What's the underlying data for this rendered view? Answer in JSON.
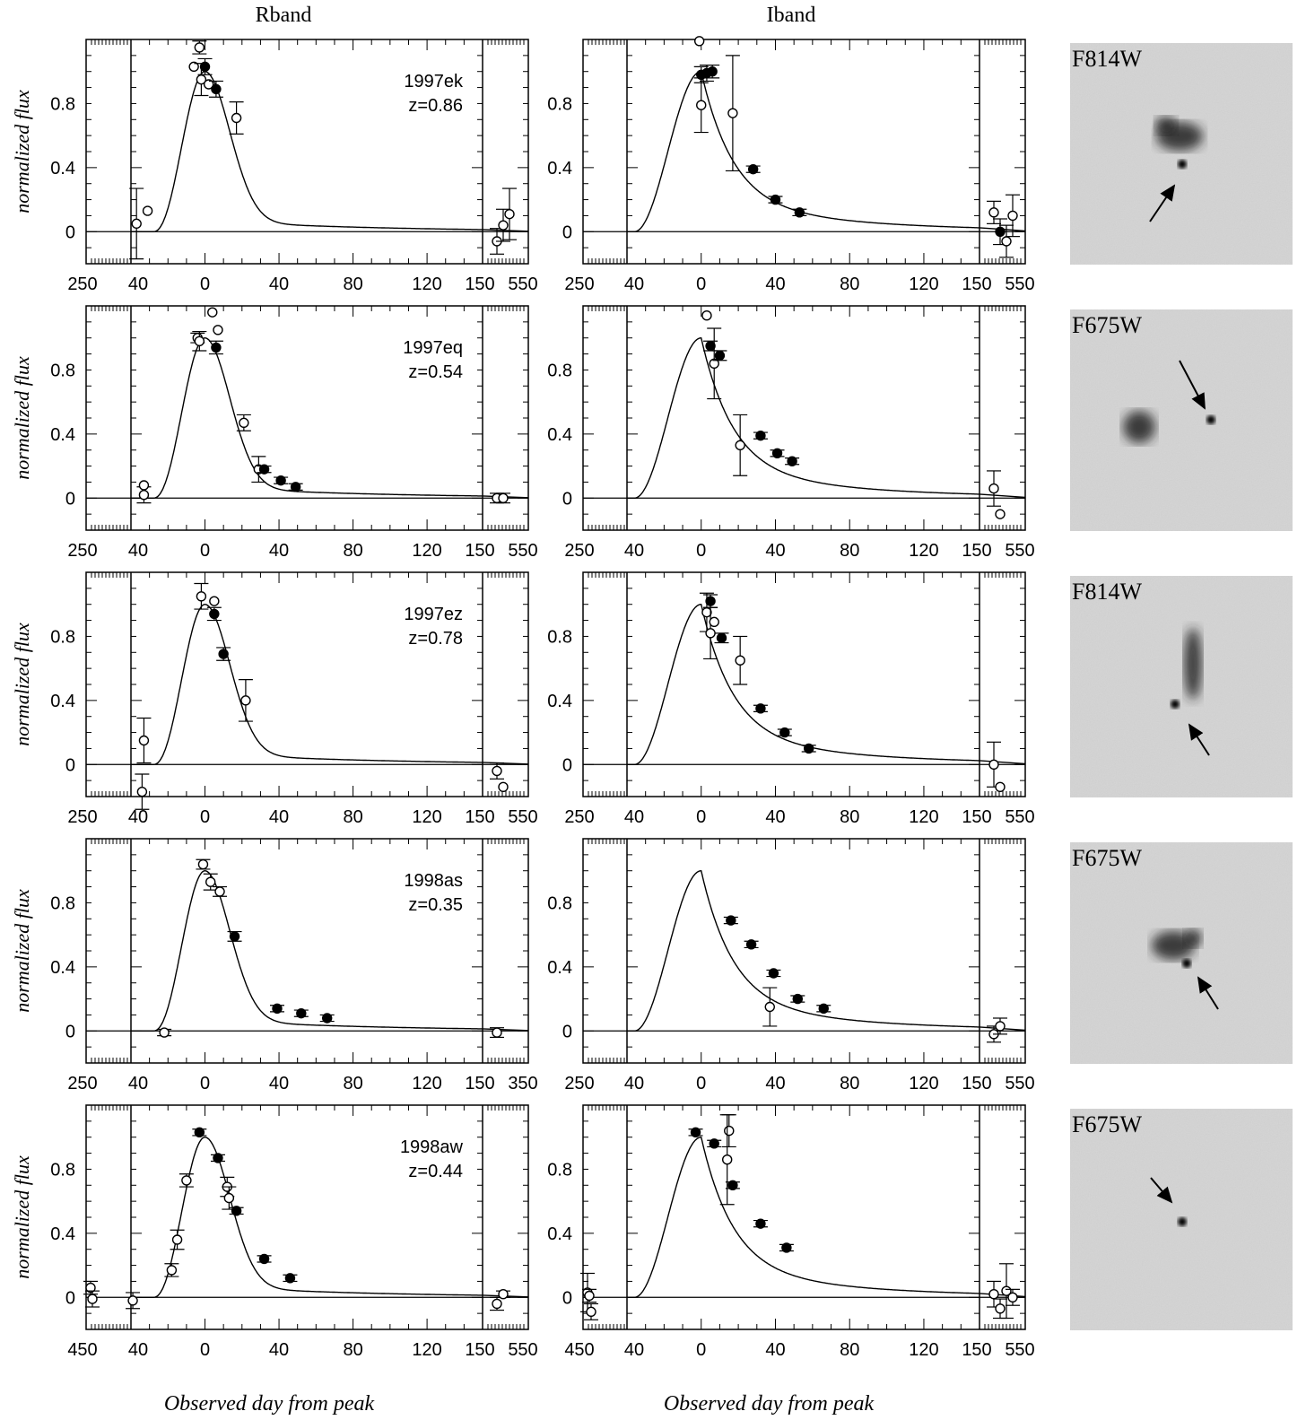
{
  "column_headers": [
    "Rband",
    "Iband"
  ],
  "x_axis_label": "Observed day from peak",
  "y_axis_label": "normalized flux",
  "colors": {
    "ink": "#000000",
    "image_bg": "#d4d4d4",
    "image_noise": "#a9a9a9"
  },
  "chart_data": [
    {
      "type": "scatter",
      "band": "R",
      "row": 1,
      "supernova": "1997ek",
      "redshift": "z=0.86",
      "xticks_left": [
        "250"
      ],
      "xticks_main": [
        "40",
        "0",
        "40",
        "80",
        "120"
      ],
      "xticks_right": [
        "150",
        "550"
      ],
      "yticks": [
        "0",
        "0.4",
        "0.8"
      ],
      "ylim": [
        -0.2,
        1.2
      ],
      "xlim": [
        -40,
        150
      ],
      "points": [
        {
          "x": -37,
          "y": 0.05,
          "err": 0.22,
          "filled": false
        },
        {
          "x": -31,
          "y": 0.13,
          "err": 0,
          "filled": false
        },
        {
          "x": -6,
          "y": 1.03,
          "err": 0,
          "filled": false
        },
        {
          "x": -3,
          "y": 1.15,
          "err": 0.04,
          "filled": false
        },
        {
          "x": -2,
          "y": 0.95,
          "err": 0.1,
          "filled": false
        },
        {
          "x": 0,
          "y": 1.03,
          "err": 0.05,
          "filled": true
        },
        {
          "x": 2,
          "y": 0.92,
          "err": 0,
          "filled": false
        },
        {
          "x": 6,
          "y": 0.89,
          "err": 0.05,
          "filled": true
        },
        {
          "x": 17,
          "y": 0.71,
          "err": 0.1,
          "filled": false
        }
      ],
      "late_points": [
        {
          "y": -0.06,
          "err": 0.08,
          "filled": false
        },
        {
          "y": 0.04,
          "err": 0.1,
          "filled": false
        },
        {
          "y": 0.11,
          "err": 0.16,
          "filled": false
        }
      ]
    },
    {
      "type": "scatter",
      "band": "I",
      "row": 1,
      "xticks_left": [
        "250"
      ],
      "xticks_main": [
        "40",
        "0",
        "40",
        "80",
        "120"
      ],
      "xticks_right": [
        "150",
        "550"
      ],
      "yticks": [
        "0",
        "0.4",
        "0.8"
      ],
      "ylim": [
        -0.2,
        1.2
      ],
      "xlim": [
        -40,
        150
      ],
      "points": [
        {
          "x": -1,
          "y": 1.19,
          "err": 0,
          "filled": false
        },
        {
          "x": 0,
          "y": 0.79,
          "err": 0.17,
          "filled": false
        },
        {
          "x": 0,
          "y": 0.98,
          "err": 0.05,
          "filled": true
        },
        {
          "x": 3,
          "y": 0.99,
          "err": 0.05,
          "filled": true
        },
        {
          "x": 6,
          "y": 1.0,
          "err": 0.04,
          "filled": true
        },
        {
          "x": 17,
          "y": 0.74,
          "err": 0.36,
          "filled": false
        },
        {
          "x": 28,
          "y": 0.39,
          "err": 0.02,
          "filled": true
        },
        {
          "x": 40,
          "y": 0.2,
          "err": 0.02,
          "filled": true
        },
        {
          "x": 53,
          "y": 0.12,
          "err": 0.02,
          "filled": true
        }
      ],
      "late_points": [
        {
          "y": 0.12,
          "err": 0.07,
          "filled": false
        },
        {
          "y": 0.0,
          "err": 0.08,
          "filled": true
        },
        {
          "y": -0.06,
          "err": 0.1,
          "filled": false
        },
        {
          "y": 0.1,
          "err": 0.13,
          "filled": false
        }
      ]
    },
    {
      "type": "scatter",
      "band": "R",
      "row": 2,
      "supernova": "1997eq",
      "redshift": "z=0.54",
      "xticks_left": [
        "250"
      ],
      "xticks_main": [
        "40",
        "0",
        "40",
        "80",
        "120"
      ],
      "xticks_right": [
        "150",
        "550"
      ],
      "yticks": [
        "0",
        "0.4",
        "0.8"
      ],
      "ylim": [
        -0.2,
        1.2
      ],
      "xlim": [
        -40,
        150
      ],
      "points": [
        {
          "x": -33,
          "y": 0.02,
          "err": 0.05,
          "filled": false
        },
        {
          "x": -33,
          "y": 0.08,
          "err": 0,
          "filled": false
        },
        {
          "x": -4,
          "y": 1.0,
          "err": 0.03,
          "filled": false
        },
        {
          "x": -3,
          "y": 0.98,
          "err": 0.06,
          "filled": false
        },
        {
          "x": 4,
          "y": 1.16,
          "err": 0,
          "filled": false
        },
        {
          "x": 6,
          "y": 0.94,
          "err": 0.04,
          "filled": true
        },
        {
          "x": 7,
          "y": 1.05,
          "err": 0,
          "filled": false
        },
        {
          "x": 21,
          "y": 0.47,
          "err": 0.05,
          "filled": false
        },
        {
          "x": 29,
          "y": 0.18,
          "err": 0.08,
          "filled": false
        },
        {
          "x": 32,
          "y": 0.18,
          "err": 0.02,
          "filled": true
        },
        {
          "x": 41,
          "y": 0.11,
          "err": 0.02,
          "filled": true
        },
        {
          "x": 49,
          "y": 0.07,
          "err": 0.02,
          "filled": true
        }
      ],
      "late_points": [
        {
          "y": 0.0,
          "err": 0.03,
          "filled": false
        },
        {
          "y": 0.0,
          "err": 0.03,
          "filled": false
        }
      ]
    },
    {
      "type": "scatter",
      "band": "I",
      "row": 2,
      "xticks_left": [
        "250"
      ],
      "xticks_main": [
        "40",
        "0",
        "40",
        "80",
        "120"
      ],
      "xticks_right": [
        "150",
        "550"
      ],
      "yticks": [
        "0",
        "0.4",
        "0.8"
      ],
      "ylim": [
        -0.2,
        1.2
      ],
      "xlim": [
        -40,
        150
      ],
      "points": [
        {
          "x": 3,
          "y": 1.14,
          "err": 0,
          "filled": false
        },
        {
          "x": 5,
          "y": 0.95,
          "err": 0.03,
          "filled": true
        },
        {
          "x": 7,
          "y": 0.84,
          "err": 0.22,
          "filled": false
        },
        {
          "x": 10,
          "y": 0.89,
          "err": 0.03,
          "filled": true
        },
        {
          "x": 21,
          "y": 0.33,
          "err": 0.19,
          "filled": false
        },
        {
          "x": 32,
          "y": 0.39,
          "err": 0.02,
          "filled": true
        },
        {
          "x": 41,
          "y": 0.28,
          "err": 0.02,
          "filled": true
        },
        {
          "x": 49,
          "y": 0.23,
          "err": 0.02,
          "filled": true
        }
      ],
      "late_points": [
        {
          "y": 0.06,
          "err": 0.11,
          "filled": false
        },
        {
          "y": -0.1,
          "err": 0,
          "filled": false
        }
      ]
    },
    {
      "type": "scatter",
      "band": "R",
      "row": 3,
      "supernova": "1997ez",
      "redshift": "z=0.78",
      "xticks_left": [
        "250"
      ],
      "xticks_main": [
        "40",
        "0",
        "40",
        "80",
        "120"
      ],
      "xticks_right": [
        "150",
        "550"
      ],
      "yticks": [
        "0",
        "0.4",
        "0.8"
      ],
      "ylim": [
        -0.2,
        1.2
      ],
      "xlim": [
        -40,
        150
      ],
      "points": [
        {
          "x": -33,
          "y": 0.15,
          "err": 0.14,
          "filled": false
        },
        {
          "x": -34,
          "y": -0.17,
          "err": 0.11,
          "filled": false
        },
        {
          "x": -2,
          "y": 1.05,
          "err": 0.08,
          "filled": false
        },
        {
          "x": 5,
          "y": 1.02,
          "err": 0,
          "filled": false
        },
        {
          "x": 5,
          "y": 0.94,
          "err": 0.04,
          "filled": true
        },
        {
          "x": 10,
          "y": 0.69,
          "err": 0.04,
          "filled": true
        },
        {
          "x": 22,
          "y": 0.4,
          "err": 0.13,
          "filled": false
        }
      ],
      "late_points": [
        {
          "y": -0.04,
          "err": 0.05,
          "filled": false
        },
        {
          "y": -0.14,
          "err": 0,
          "filled": false
        }
      ]
    },
    {
      "type": "scatter",
      "band": "I",
      "row": 3,
      "xticks_left": [
        "250"
      ],
      "xticks_main": [
        "40",
        "0",
        "40",
        "80",
        "120"
      ],
      "xticks_right": [
        "150",
        "550"
      ],
      "yticks": [
        "0",
        "0.4",
        "0.8"
      ],
      "ylim": [
        -0.2,
        1.2
      ],
      "xlim": [
        -40,
        150
      ],
      "points": [
        {
          "x": 3,
          "y": 0.95,
          "err": 0.12,
          "filled": false
        },
        {
          "x": 5,
          "y": 0.82,
          "err": 0.16,
          "filled": false
        },
        {
          "x": 5,
          "y": 1.02,
          "err": 0.04,
          "filled": true
        },
        {
          "x": 7,
          "y": 0.89,
          "err": 0,
          "filled": false
        },
        {
          "x": 11,
          "y": 0.79,
          "err": 0.03,
          "filled": true
        },
        {
          "x": 21,
          "y": 0.65,
          "err": 0.15,
          "filled": false
        },
        {
          "x": 32,
          "y": 0.35,
          "err": 0.02,
          "filled": true
        },
        {
          "x": 45,
          "y": 0.2,
          "err": 0.02,
          "filled": true
        },
        {
          "x": 58,
          "y": 0.1,
          "err": 0.02,
          "filled": true
        }
      ],
      "late_points": [
        {
          "y": 0.0,
          "err": 0.14,
          "filled": false
        },
        {
          "y": -0.14,
          "err": 0,
          "filled": false
        }
      ]
    },
    {
      "type": "scatter",
      "band": "R",
      "row": 4,
      "supernova": "1998as",
      "redshift": "z=0.35",
      "xticks_left": [
        "250"
      ],
      "xticks_main": [
        "40",
        "0",
        "40",
        "80",
        "120"
      ],
      "xticks_right": [
        "150",
        "350"
      ],
      "yticks": [
        "0",
        "0.4",
        "0.8"
      ],
      "ylim": [
        -0.2,
        1.2
      ],
      "xlim": [
        -40,
        150
      ],
      "points": [
        {
          "x": -22,
          "y": -0.01,
          "err": 0.02,
          "filled": false
        },
        {
          "x": -1,
          "y": 1.04,
          "err": 0.03,
          "filled": false
        },
        {
          "x": 3,
          "y": 0.93,
          "err": 0.05,
          "filled": false
        },
        {
          "x": 8,
          "y": 0.87,
          "err": 0.03,
          "filled": false
        },
        {
          "x": 16,
          "y": 0.59,
          "err": 0.03,
          "filled": true
        },
        {
          "x": 39,
          "y": 0.14,
          "err": 0.02,
          "filled": true
        },
        {
          "x": 52,
          "y": 0.11,
          "err": 0.02,
          "filled": true
        },
        {
          "x": 66,
          "y": 0.08,
          "err": 0.02,
          "filled": true
        }
      ],
      "late_points": [
        {
          "y": -0.01,
          "err": 0.03,
          "filled": false
        }
      ]
    },
    {
      "type": "scatter",
      "band": "I",
      "row": 4,
      "xticks_left": [
        "250"
      ],
      "xticks_main": [
        "40",
        "0",
        "40",
        "80",
        "120"
      ],
      "xticks_right": [
        "150",
        "550"
      ],
      "yticks": [
        "0",
        "0.4",
        "0.8"
      ],
      "ylim": [
        -0.2,
        1.2
      ],
      "xlim": [
        -40,
        150
      ],
      "points": [
        {
          "x": 16,
          "y": 0.69,
          "err": 0.02,
          "filled": true
        },
        {
          "x": 27,
          "y": 0.54,
          "err": 0.02,
          "filled": true
        },
        {
          "x": 37,
          "y": 0.15,
          "err": 0.12,
          "filled": false
        },
        {
          "x": 39,
          "y": 0.36,
          "err": 0.02,
          "filled": true
        },
        {
          "x": 52,
          "y": 0.2,
          "err": 0.02,
          "filled": true
        },
        {
          "x": 66,
          "y": 0.14,
          "err": 0.02,
          "filled": true
        }
      ],
      "late_points": [
        {
          "y": -0.02,
          "err": 0.05,
          "filled": false
        },
        {
          "y": 0.03,
          "err": 0.05,
          "filled": false
        }
      ]
    },
    {
      "type": "scatter",
      "band": "R",
      "row": 5,
      "supernova": "1998aw",
      "redshift": "z=0.44",
      "xticks_left": [
        "450"
      ],
      "xticks_main": [
        "40",
        "0",
        "40",
        "80",
        "120"
      ],
      "xticks_right": [
        "150",
        "550"
      ],
      "yticks": [
        "0",
        "0.4",
        "0.8"
      ],
      "ylim": [
        -0.2,
        1.2
      ],
      "xlim": [
        -40,
        150
      ],
      "points": [
        {
          "x": -39,
          "y": -0.02,
          "err": 0.05,
          "filled": false
        },
        {
          "x": -18,
          "y": 0.17,
          "err": 0.04,
          "filled": false
        },
        {
          "x": -15,
          "y": 0.36,
          "err": 0.06,
          "filled": false
        },
        {
          "x": -10,
          "y": 0.73,
          "err": 0.04,
          "filled": false
        },
        {
          "x": -3,
          "y": 1.03,
          "err": 0.02,
          "filled": true
        },
        {
          "x": 7,
          "y": 0.87,
          "err": 0.02,
          "filled": true
        },
        {
          "x": 12,
          "y": 0.69,
          "err": 0.06,
          "filled": false
        },
        {
          "x": 13,
          "y": 0.62,
          "err": 0.07,
          "filled": false
        },
        {
          "x": 17,
          "y": 0.54,
          "err": 0.02,
          "filled": true
        },
        {
          "x": 32,
          "y": 0.24,
          "err": 0.02,
          "filled": true
        },
        {
          "x": 46,
          "y": 0.12,
          "err": 0.02,
          "filled": true
        }
      ],
      "left_points": [
        {
          "y": 0.06,
          "err": 0.04,
          "filled": false
        },
        {
          "y": -0.01,
          "err": 0.05,
          "filled": false
        }
      ],
      "late_points": [
        {
          "y": -0.04,
          "err": 0.04,
          "filled": false
        },
        {
          "y": 0.02,
          "err": 0.02,
          "filled": false
        }
      ]
    },
    {
      "type": "scatter",
      "band": "I",
      "row": 5,
      "xticks_left": [
        "450"
      ],
      "xticks_main": [
        "40",
        "0",
        "40",
        "80",
        "120"
      ],
      "xticks_right": [
        "150",
        "550"
      ],
      "yticks": [
        "0",
        "0.4",
        "0.8"
      ],
      "ylim": [
        -0.2,
        1.2
      ],
      "xlim": [
        -40,
        150
      ],
      "points": [
        {
          "x": -3,
          "y": 1.03,
          "err": 0.02,
          "filled": true
        },
        {
          "x": 7,
          "y": 0.96,
          "err": 0.02,
          "filled": true
        },
        {
          "x": 15,
          "y": 1.04,
          "err": 0.1,
          "filled": false
        },
        {
          "x": 14,
          "y": 0.86,
          "err": 0.28,
          "filled": false
        },
        {
          "x": 17,
          "y": 0.7,
          "err": 0.02,
          "filled": true
        },
        {
          "x": 32,
          "y": 0.46,
          "err": 0.02,
          "filled": true
        },
        {
          "x": 46,
          "y": 0.31,
          "err": 0.02,
          "filled": true
        }
      ],
      "left_points": [
        {
          "y": 0.03,
          "err": 0.12,
          "filled": false
        },
        {
          "y": 0.01,
          "err": 0.04,
          "filled": false
        },
        {
          "y": -0.09,
          "err": 0.05,
          "filled": false
        }
      ],
      "late_points": [
        {
          "y": 0.02,
          "err": 0.08,
          "filled": false
        },
        {
          "y": -0.07,
          "err": 0.06,
          "filled": false
        },
        {
          "y": 0.04,
          "err": 0.17,
          "filled": false
        },
        {
          "y": 0.0,
          "err": 0.05,
          "filled": false
        }
      ]
    }
  ],
  "thumbnails": [
    {
      "filter": "F814W",
      "arrow_direction": "up-right"
    },
    {
      "filter": "F675W",
      "arrow_direction": "down-right"
    },
    {
      "filter": "F814W",
      "arrow_direction": "up-left"
    },
    {
      "filter": "F675W",
      "arrow_direction": "up-left"
    },
    {
      "filter": "F675W",
      "arrow_direction": "down-right"
    }
  ]
}
